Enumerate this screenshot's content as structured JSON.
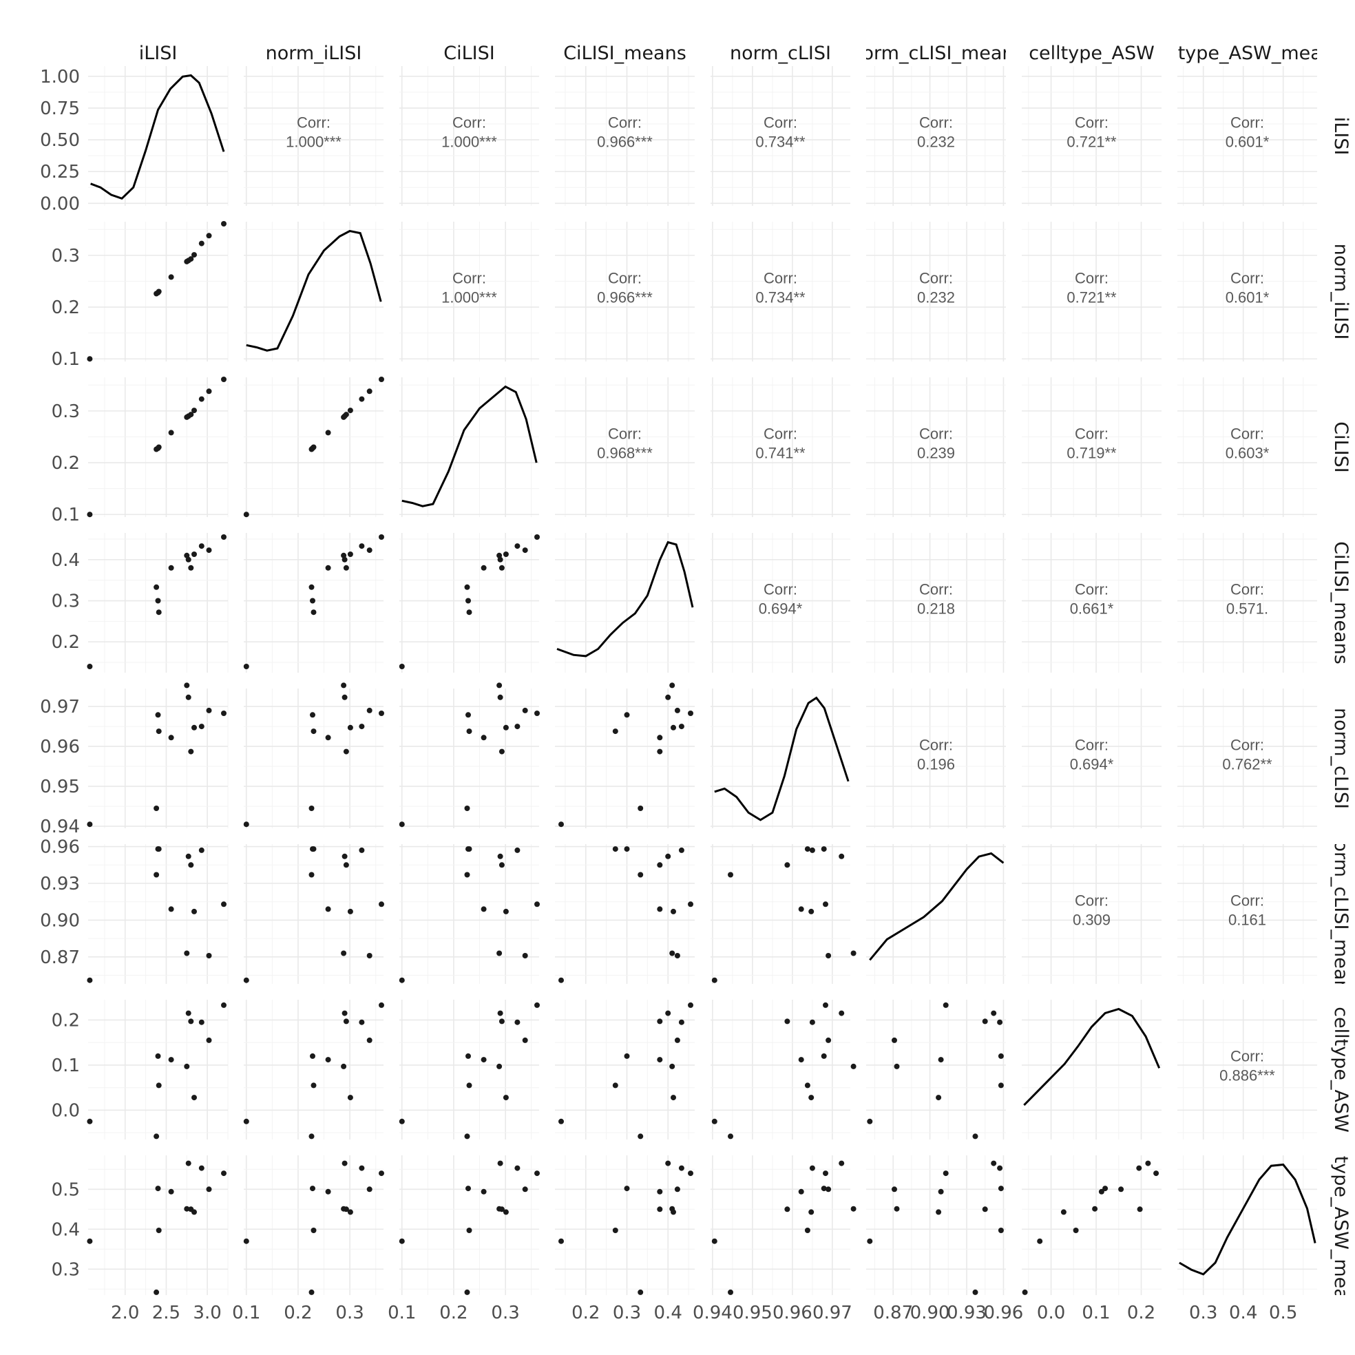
{
  "chart_data": {
    "type": "scatter",
    "variables": [
      "iLISI",
      "norm_iLISI",
      "CiLISI",
      "CiLISI_means",
      "norm_cLISI",
      "norm_cLISI_means",
      "celltype_ASW",
      "celltype_ASW_means"
    ],
    "strip_labels": [
      "iLISI",
      "norm_iLISI",
      "CiLISI",
      "CiLISI_means",
      "norm_cLISI",
      "orm_cLISI_mear",
      "celltype_ASW",
      "ltype_ASW_mea"
    ],
    "corr_label": "Corr:",
    "correlations": [
      {
        "row": 0,
        "col": 1,
        "value": "1.000***"
      },
      {
        "row": 0,
        "col": 2,
        "value": "1.000***"
      },
      {
        "row": 0,
        "col": 3,
        "value": "0.966***"
      },
      {
        "row": 0,
        "col": 4,
        "value": "0.734**"
      },
      {
        "row": 0,
        "col": 5,
        "value": "0.232"
      },
      {
        "row": 0,
        "col": 6,
        "value": "0.721**"
      },
      {
        "row": 0,
        "col": 7,
        "value": "0.601*"
      },
      {
        "row": 1,
        "col": 2,
        "value": "1.000***"
      },
      {
        "row": 1,
        "col": 3,
        "value": "0.966***"
      },
      {
        "row": 1,
        "col": 4,
        "value": "0.734**"
      },
      {
        "row": 1,
        "col": 5,
        "value": "0.232"
      },
      {
        "row": 1,
        "col": 6,
        "value": "0.721**"
      },
      {
        "row": 1,
        "col": 7,
        "value": "0.601*"
      },
      {
        "row": 2,
        "col": 3,
        "value": "0.968***"
      },
      {
        "row": 2,
        "col": 4,
        "value": "0.741**"
      },
      {
        "row": 2,
        "col": 5,
        "value": "0.239"
      },
      {
        "row": 2,
        "col": 6,
        "value": "0.719**"
      },
      {
        "row": 2,
        "col": 7,
        "value": "0.603*"
      },
      {
        "row": 3,
        "col": 4,
        "value": "0.694*"
      },
      {
        "row": 3,
        "col": 5,
        "value": "0.218"
      },
      {
        "row": 3,
        "col": 6,
        "value": "0.661*"
      },
      {
        "row": 3,
        "col": 7,
        "value": "0.571."
      },
      {
        "row": 4,
        "col": 5,
        "value": "0.196"
      },
      {
        "row": 4,
        "col": 6,
        "value": "0.694*"
      },
      {
        "row": 4,
        "col": 7,
        "value": "0.762**"
      },
      {
        "row": 5,
        "col": 6,
        "value": "0.309"
      },
      {
        "row": 5,
        "col": 7,
        "value": "0.161"
      },
      {
        "row": 6,
        "col": 7,
        "value": "0.886***"
      }
    ],
    "ranges": [
      [
        1.55,
        3.25
      ],
      [
        0.095,
        0.365
      ],
      [
        0.095,
        0.365
      ],
      [
        0.125,
        0.465
      ],
      [
        0.9395,
        0.9745
      ],
      [
        0.848,
        0.962
      ],
      [
        -0.065,
        0.245
      ],
      [
        0.235,
        0.585
      ]
    ],
    "x_ticks": [
      {
        "values": [
          2.0,
          2.5,
          3.0
        ],
        "labels": [
          "2.0",
          "2.5",
          "3.0"
        ]
      },
      {
        "values": [
          0.1,
          0.2,
          0.3
        ],
        "labels": [
          "0.1",
          "0.2",
          "0.3"
        ]
      },
      {
        "values": [
          0.1,
          0.2,
          0.3
        ],
        "labels": [
          "0.1",
          "0.2",
          "0.3"
        ]
      },
      {
        "values": [
          0.2,
          0.3,
          0.4
        ],
        "labels": [
          "0.2",
          "0.3",
          "0.4"
        ]
      },
      {
        "values": [
          0.94,
          0.95,
          0.96,
          0.97
        ],
        "labels": [
          "0.94",
          "0.95",
          "0.96",
          "0.97"
        ]
      },
      {
        "values": [
          0.87,
          0.9,
          0.93,
          0.96
        ],
        "labels": [
          "0.87",
          "0.90",
          "0.93",
          "0.96"
        ]
      },
      {
        "values": [
          0.0,
          0.1,
          0.2
        ],
        "labels": [
          "0.0",
          "0.1",
          "0.2"
        ]
      },
      {
        "values": [
          0.3,
          0.4,
          0.5
        ],
        "labels": [
          "0.3",
          "0.4",
          "0.5"
        ]
      }
    ],
    "y_ticks_row0": {
      "values": [
        0.0,
        0.25,
        0.5,
        0.75,
        1.0
      ],
      "labels": [
        "0.00",
        "0.25",
        "0.50",
        "0.75",
        "1.00"
      ],
      "range": [
        -0.02,
        1.08
      ]
    },
    "y_ticks": [
      null,
      {
        "values": [
          0.1,
          0.2,
          0.3
        ],
        "labels": [
          "0.1",
          "0.2",
          "0.3"
        ]
      },
      {
        "values": [
          0.1,
          0.2,
          0.3
        ],
        "labels": [
          "0.1",
          "0.2",
          "0.3"
        ]
      },
      {
        "values": [
          0.2,
          0.3,
          0.4
        ],
        "labels": [
          "0.2",
          "0.3",
          "0.4"
        ]
      },
      {
        "values": [
          0.94,
          0.95,
          0.96,
          0.97
        ],
        "labels": [
          "0.94",
          "0.95",
          "0.96",
          "0.97"
        ]
      },
      {
        "values": [
          0.87,
          0.9,
          0.93,
          0.96
        ],
        "labels": [
          "0.87",
          "0.90",
          "0.93",
          "0.96"
        ]
      },
      {
        "values": [
          0.0,
          0.1,
          0.2
        ],
        "labels": [
          "0.0",
          "0.1",
          "0.2"
        ]
      },
      {
        "values": [
          0.3,
          0.4,
          0.5
        ],
        "labels": [
          "0.3",
          "0.4",
          "0.5"
        ]
      }
    ],
    "observations": [
      [
        1.57,
        0.1,
        0.1,
        0.14,
        0.9405,
        0.851,
        -0.025,
        0.37
      ],
      [
        2.38,
        0.226,
        0.226,
        0.333,
        0.9445,
        0.937,
        -0.058,
        0.242
      ],
      [
        2.4,
        0.228,
        0.228,
        0.3,
        0.9679,
        0.958,
        0.12,
        0.502
      ],
      [
        2.41,
        0.23,
        0.23,
        0.272,
        0.9638,
        0.958,
        0.055,
        0.397
      ],
      [
        2.56,
        0.258,
        0.258,
        0.38,
        0.9622,
        0.909,
        0.112,
        0.494
      ],
      [
        2.75,
        0.288,
        0.288,
        0.41,
        0.9753,
        0.873,
        0.097,
        0.451
      ],
      [
        2.77,
        0.29,
        0.29,
        0.4,
        0.9723,
        0.952,
        0.215,
        0.565
      ],
      [
        2.8,
        0.293,
        0.293,
        0.38,
        0.9587,
        0.945,
        0.197,
        0.45
      ],
      [
        2.84,
        0.301,
        0.301,
        0.413,
        0.9647,
        0.907,
        0.028,
        0.443
      ],
      [
        2.93,
        0.323,
        0.323,
        0.433,
        0.965,
        0.957,
        0.195,
        0.553
      ],
      [
        3.02,
        0.338,
        0.338,
        0.423,
        0.969,
        0.871,
        0.155,
        0.5
      ],
      [
        3.2,
        0.361,
        0.361,
        0.455,
        0.9683,
        0.913,
        0.233,
        0.54
      ]
    ],
    "densities": [
      {
        "x": [
          1.58,
          1.7,
          1.83,
          1.96,
          2.1,
          2.25,
          2.4,
          2.55,
          2.7,
          2.8,
          2.9,
          3.05,
          3.2
        ],
        "y": [
          0.18,
          0.15,
          0.09,
          0.06,
          0.15,
          0.45,
          0.78,
          0.95,
          1.05,
          1.06,
          1.0,
          0.75,
          0.44
        ]
      },
      {
        "x": [
          0.1,
          0.12,
          0.14,
          0.16,
          0.19,
          0.22,
          0.25,
          0.28,
          0.3,
          0.32,
          0.34,
          0.36
        ],
        "y": [
          0.15,
          0.13,
          0.1,
          0.12,
          0.42,
          0.8,
          1.02,
          1.15,
          1.2,
          1.18,
          0.9,
          0.55
        ]
      },
      {
        "x": [
          0.1,
          0.12,
          0.14,
          0.16,
          0.19,
          0.22,
          0.25,
          0.28,
          0.3,
          0.32,
          0.34,
          0.36
        ],
        "y": [
          0.15,
          0.13,
          0.1,
          0.12,
          0.42,
          0.8,
          1.0,
          1.12,
          1.2,
          1.15,
          0.9,
          0.5
        ]
      },
      {
        "x": [
          0.13,
          0.17,
          0.2,
          0.23,
          0.26,
          0.29,
          0.32,
          0.35,
          0.38,
          0.4,
          0.42,
          0.44,
          0.46
        ],
        "y": [
          0.2,
          0.15,
          0.14,
          0.2,
          0.32,
          0.42,
          0.5,
          0.65,
          0.95,
          1.1,
          1.08,
          0.85,
          0.55
        ]
      },
      {
        "x": [
          0.9405,
          0.943,
          0.946,
          0.949,
          0.952,
          0.955,
          0.958,
          0.961,
          0.964,
          0.966,
          0.968,
          0.971,
          0.974
        ],
        "y": [
          0.35,
          0.38,
          0.3,
          0.15,
          0.08,
          0.15,
          0.5,
          0.95,
          1.2,
          1.25,
          1.15,
          0.8,
          0.45
        ]
      },
      {
        "x": [
          0.851,
          0.865,
          0.88,
          0.895,
          0.91,
          0.92,
          0.93,
          0.94,
          0.95,
          0.96
        ],
        "y": [
          0.15,
          0.28,
          0.35,
          0.42,
          0.52,
          0.62,
          0.72,
          0.8,
          0.82,
          0.76
        ]
      },
      {
        "x": [
          -0.06,
          -0.03,
          0.0,
          0.03,
          0.06,
          0.09,
          0.12,
          0.15,
          0.18,
          0.21,
          0.24
        ],
        "y": [
          0.25,
          0.35,
          0.45,
          0.55,
          0.68,
          0.82,
          0.92,
          0.95,
          0.9,
          0.75,
          0.52
        ]
      },
      {
        "x": [
          0.24,
          0.27,
          0.3,
          0.33,
          0.36,
          0.4,
          0.44,
          0.47,
          0.5,
          0.53,
          0.56,
          0.58
        ],
        "y": [
          0.28,
          0.22,
          0.18,
          0.28,
          0.5,
          0.75,
          1.0,
          1.12,
          1.13,
          1.0,
          0.75,
          0.45
        ]
      }
    ],
    "grid": true,
    "xlabel": "",
    "ylabel": ""
  }
}
